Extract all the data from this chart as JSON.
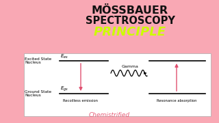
{
  "bg_color": "#F9A8B4",
  "title1": "MÖSSBAUER",
  "title2": "SPECTROSCOPY",
  "title3": "PRINCIPLE",
  "title1_color": "#111111",
  "title3_color": "#CCFF00",
  "diagram_bg": "#FFFFFF",
  "credit": "Chemistrified",
  "credit_color": "#E8607A",
  "credit_fontsize": 7
}
